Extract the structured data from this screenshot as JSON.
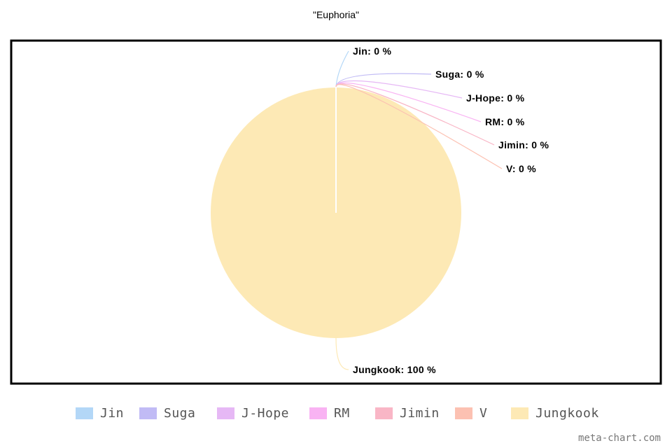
{
  "chart_data": {
    "type": "pie",
    "title": "\"Euphoria\"",
    "categories": [
      "Jin",
      "Suga",
      "J-Hope",
      "RM",
      "Jimin",
      "V",
      "Jungkook"
    ],
    "values": [
      0,
      0,
      0,
      0,
      0,
      0,
      100
    ],
    "unit": "%",
    "data_labels": [
      "Jin: 0 %",
      "Suga: 0 %",
      "J-Hope: 0 %",
      "RM: 0 %",
      "Jimin: 0 %",
      "V: 0 %",
      "Jungkook: 100 %"
    ],
    "colors": [
      "#b3d7f7",
      "#c1bbf5",
      "#e6b8f5",
      "#f9b3f3",
      "#f9b6c6",
      "#fcc1b2",
      "#fde9b5"
    ],
    "legend_position": "bottom"
  },
  "watermark": "meta-chart.com"
}
